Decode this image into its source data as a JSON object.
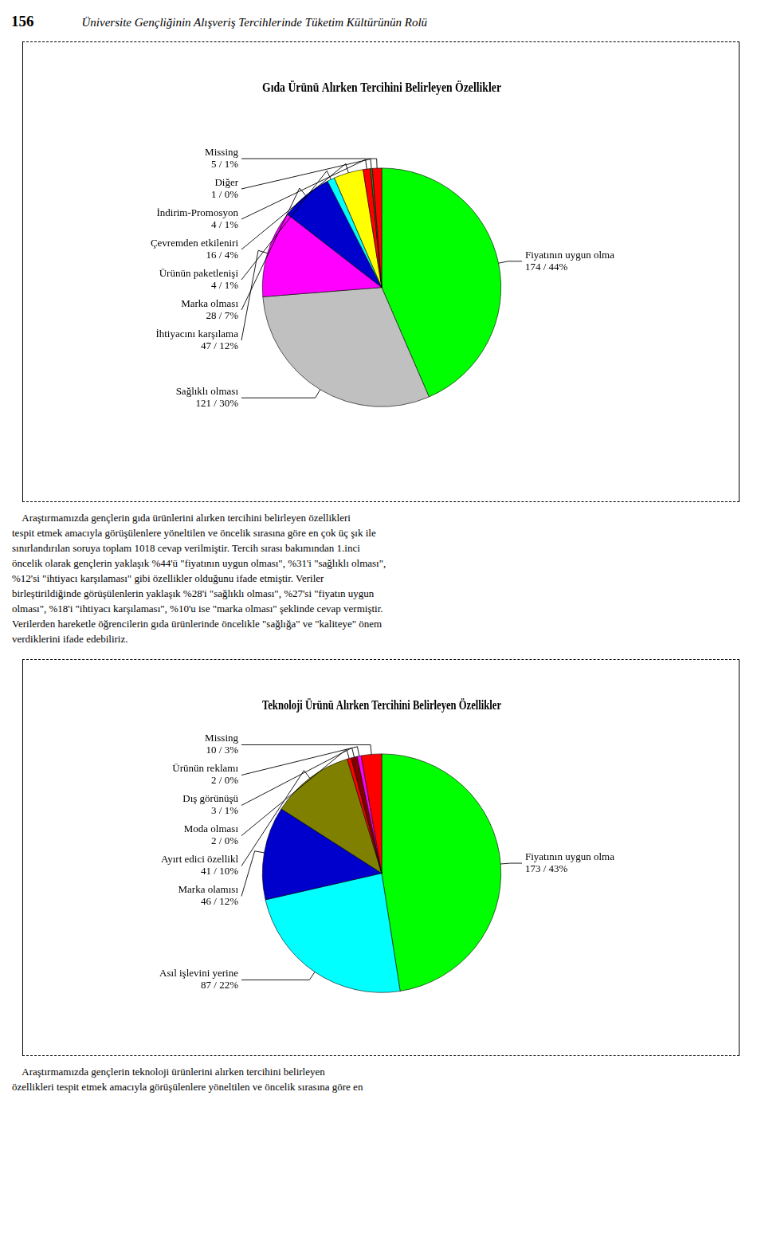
{
  "chart_data": [
    {
      "type": "pie",
      "title": "Gıda Ürünü Alırken Tercihini Belirleyen Özellikler",
      "categories": [
        "Fiyatının uygun olma",
        "Sağlıklı olması",
        "İhtiyacını karşılama",
        "Marka olması",
        "Ürünün paketlenişi",
        "Çevremden etkileniri",
        "İndirim-Promosyon",
        "Diğer",
        "Missing"
      ],
      "values": [
        174,
        121,
        47,
        28,
        4,
        16,
        4,
        1,
        5
      ],
      "value_labels": [
        "174 / 44%",
        "121 / 30%",
        "47 / 12%",
        "28 / 7%",
        "4 / 1%",
        "16 / 4%",
        "4 / 1%",
        "1 / 0%",
        "5 / 1%"
      ],
      "colors": [
        "#00FF00",
        "#C0C0C0",
        "#FF00FF",
        "#0000CD",
        "#00FFFF",
        "#FFFF00",
        "#FF0000",
        "#228B22",
        "#FF0000"
      ],
      "data_labels": true,
      "legend": false,
      "annotations": [
        "156",
        "Üniversite Gençliğinin Alışveriş Tercihlerinde Tüketim Kültürünün Rolü",
        "    Araştırmamızda gençlerin gıda ürünlerini alırken tercihini belirleyen özellikleri",
        "tespit etmek amacıyla görüşülenlere yöneltilen ve öncelik sırasına göre en çok üç şık ile",
        "sınırlandırılan soruya toplam 1018 cevap verilmiştir. Tercih sırası bakımından 1.inci",
        "öncelik olarak gençlerin yaklaşık %44'ü \"fiyatının uygun olması\", %31'i \"sağlıklı olması\",",
        "%12'si \"ihtiyacı karşılaması\" gibi özellikler olduğunu ifade etmiştir. Veriler",
        "birleştirildiğinde görüşülenlerin yaklaşık %28'i \"sağlıklı olması\", %27'si \"fiyatın uygun",
        "olması\", %18'i \"ihtiyacı karşılaması\", %10'u ise \"marka olması\" şeklinde cevap vermiştir.",
        "Verilerden hareketle öğrencilerin gıda ürünlerinde öncelikle \"sağlığa\" ve \"kaliteye\" önem",
        "verdiklerini ifade edebiliriz."
      ]
    },
    {
      "type": "pie",
      "title": "Teknoloji Ürünü Alırken Tercihini Belirleyen Özellikler",
      "categories": [
        "Fiyatının uygun olma",
        "Asıl işlevini yerine",
        "Marka olamısı",
        "Ayırt edici özellikl",
        "Moda olması",
        "Dış görünüşü",
        "Ürünün reklamı",
        "Missing"
      ],
      "values": [
        173,
        87,
        46,
        41,
        2,
        3,
        2,
        10
      ],
      "value_labels": [
        "173 / 43%",
        "87 / 22%",
        "46 / 12%",
        "41 / 10%",
        "2 / 0%",
        "3 / 1%",
        "2 / 0%",
        "10 / 3%"
      ],
      "colors": [
        "#00FF00",
        "#00FFFF",
        "#0000CD",
        "#808000",
        "#FF0000",
        "#800000",
        "#FF00FF",
        "#FF0000"
      ],
      "data_labels": true,
      "legend": false,
      "annotations": [
        "    Araştırmamızda gençlerin teknoloji ürünlerini alırken tercihini belirleyen",
        "özellikleri tespit etmek amacıyla görüşülenlere yöneltilen ve öncelik sırasına göre en"
      ]
    }
  ]
}
